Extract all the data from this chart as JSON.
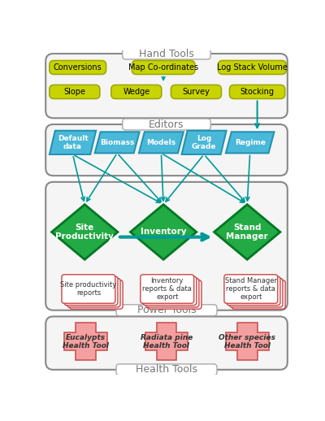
{
  "background_color": "#ffffff",
  "hand_tools_label": "Hand Tools",
  "editors_label": "Editors",
  "power_tools_label": "Power Tools",
  "health_tools_label": "Health Tools",
  "yellow_color": "#c8d400",
  "yellow_border": "#a0a800",
  "blue_color": "#4ab8d8",
  "blue_border": "#2090b0",
  "green_color": "#22aa44",
  "green_border": "#007722",
  "report_color": "#ffffff",
  "report_border": "#cc4444",
  "health_color": "#f4a0a0",
  "health_border": "#cc5555",
  "arrow_color": "#009999",
  "section_fill": "#f5f5f5",
  "section_edge": "#888888",
  "title_fill": "#ffffff",
  "title_edge": "#aaaaaa",
  "title_color": "#777777"
}
